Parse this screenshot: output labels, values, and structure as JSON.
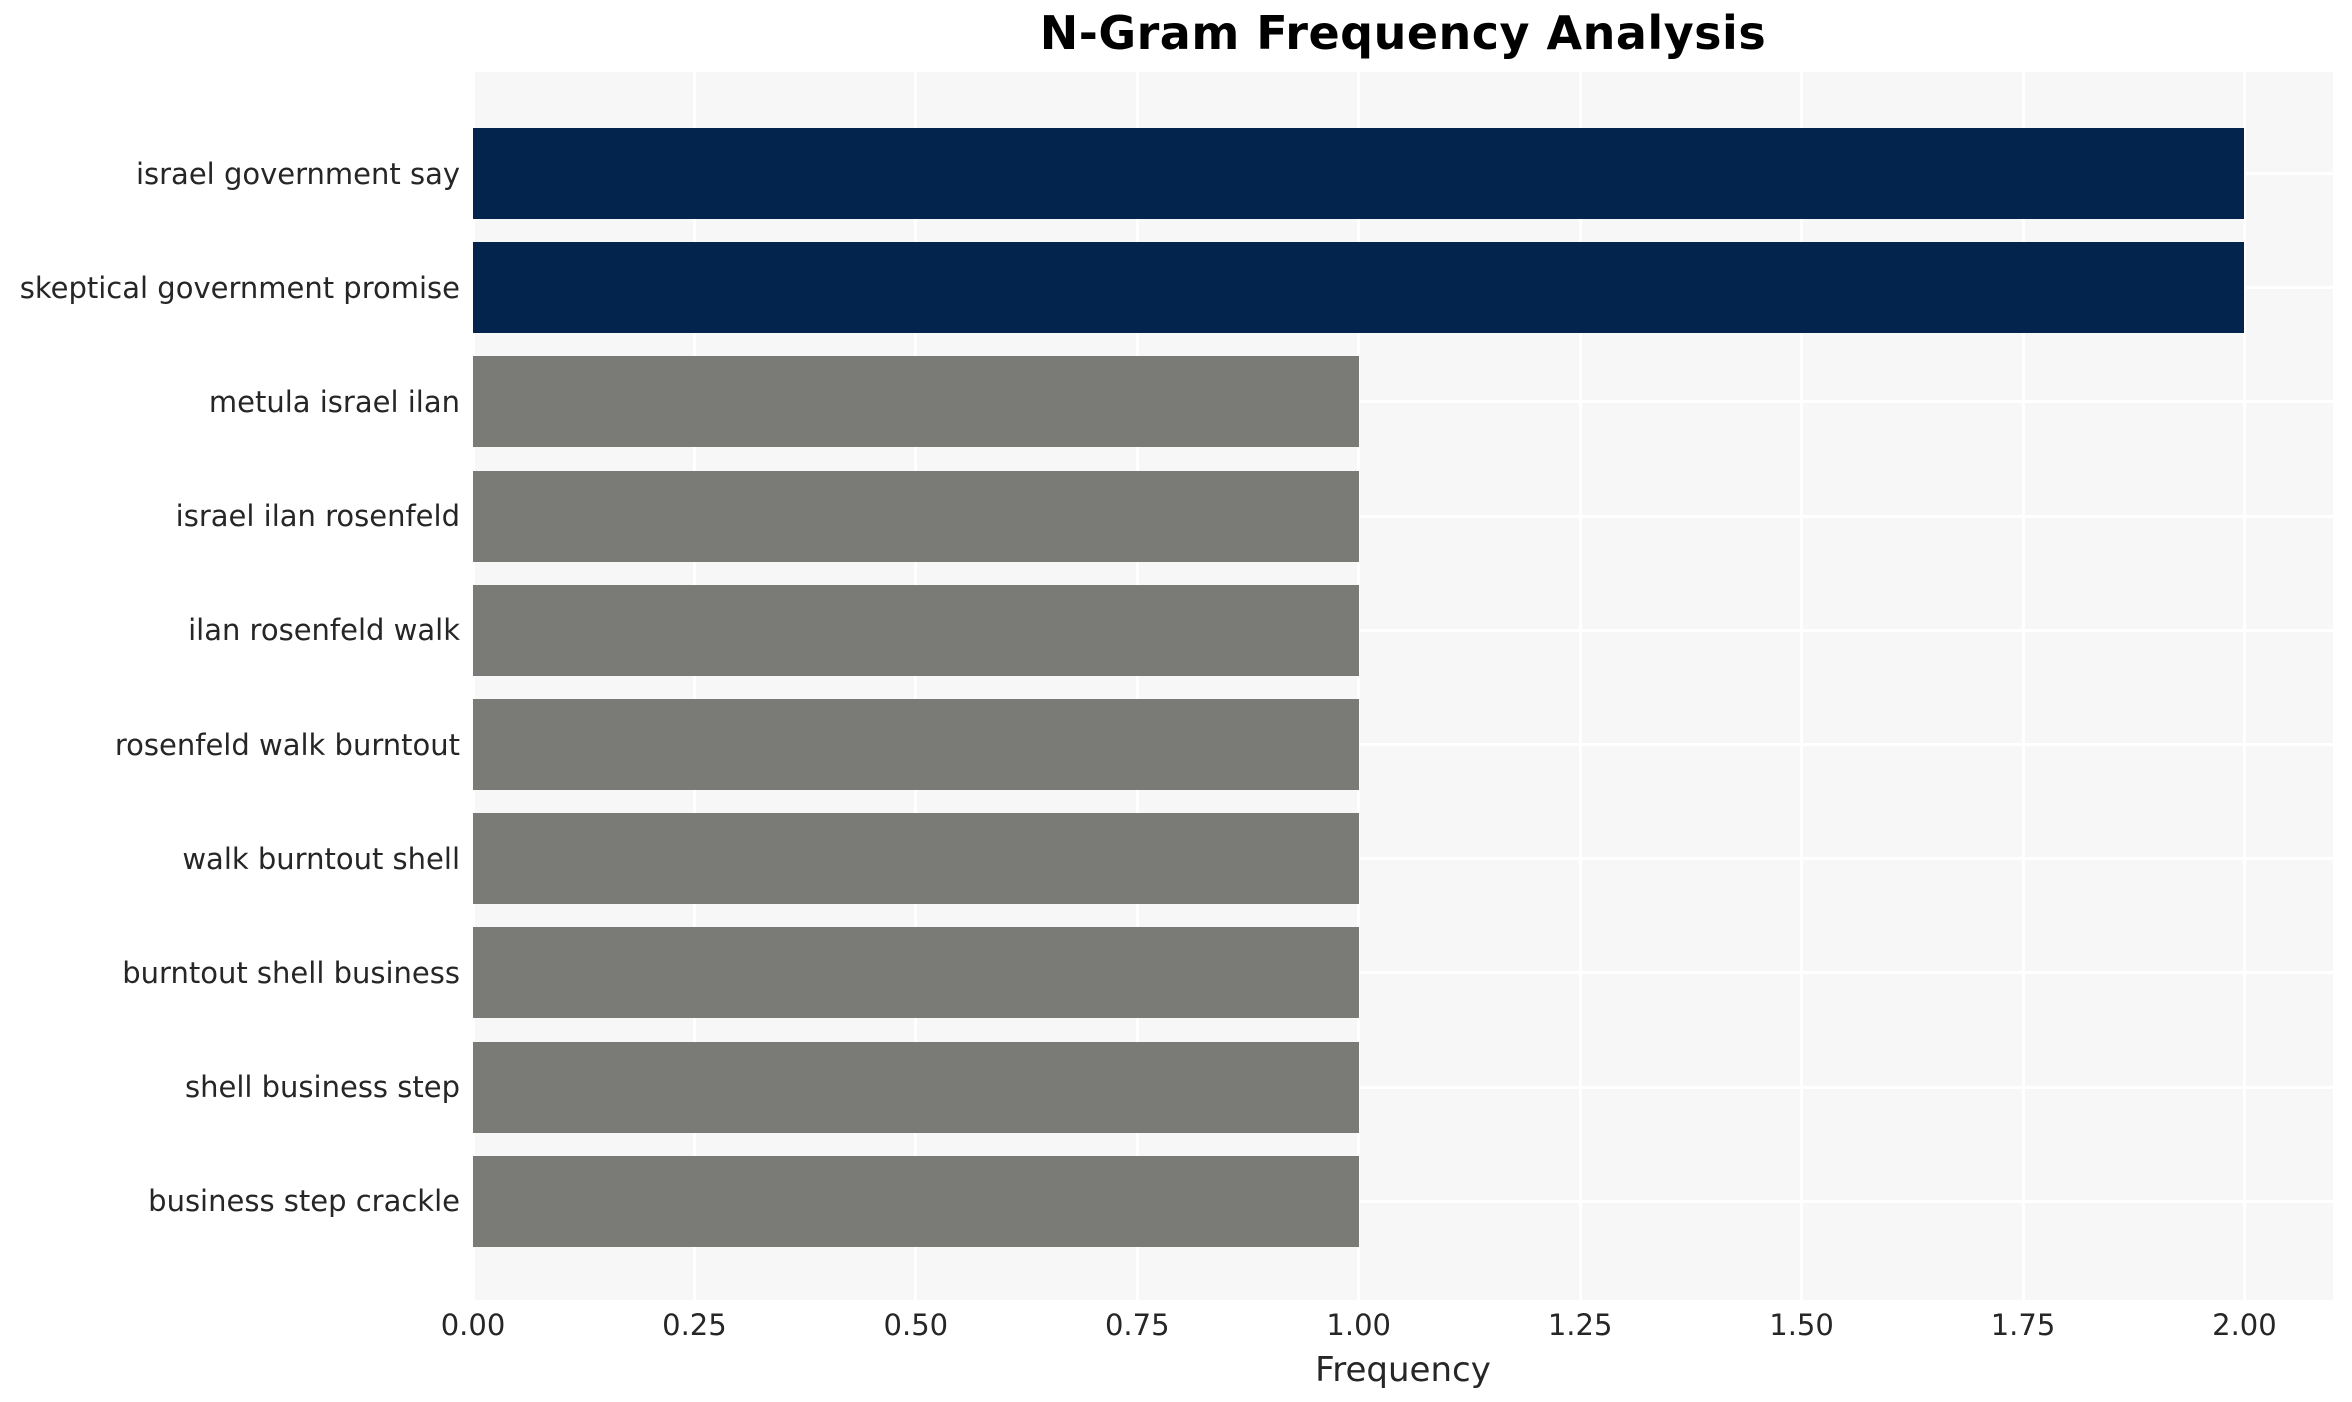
{
  "title": "N-Gram Frequency Analysis",
  "x_axis": {
    "label": "Frequency"
  },
  "chart_data": {
    "type": "bar",
    "orientation": "horizontal",
    "title": "N-Gram Frequency Analysis",
    "xlabel": "Frequency",
    "ylabel": "",
    "categories": [
      "israel government say",
      "skeptical government promise",
      "metula israel ilan",
      "israel ilan rosenfeld",
      "ilan rosenfeld walk",
      "rosenfeld walk burntout",
      "walk burntout shell",
      "burntout shell business",
      "shell business step",
      "business step crackle"
    ],
    "values": [
      2,
      2,
      1,
      1,
      1,
      1,
      1,
      1,
      1,
      1
    ],
    "bar_colors": [
      "#02244d",
      "#02244d",
      "#7a7a77",
      "#7a7a77",
      "#7a7a77",
      "#7a7a77",
      "#7a7a77",
      "#7a7a77",
      "#7a7a77",
      "#7a7a77"
    ],
    "xlim": [
      0,
      2.1
    ],
    "xticks": [
      0.0,
      0.25,
      0.5,
      0.75,
      1.0,
      1.25,
      1.5,
      1.75,
      2.0
    ],
    "xtick_labels": [
      "0.00",
      "0.25",
      "0.50",
      "0.75",
      "1.00",
      "1.25",
      "1.50",
      "1.75",
      "2.00"
    ],
    "grid": true,
    "grid_color": "#ffffff",
    "plot_background": "#f7f7f7",
    "figure_background": "#ffffff",
    "text_color": "#262626",
    "highlight_color": "#02244d",
    "default_color": "#7a7a77",
    "legend": null
  }
}
